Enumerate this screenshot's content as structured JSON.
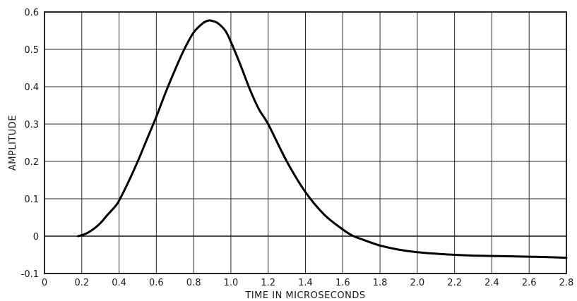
{
  "chart_data": {
    "type": "line",
    "title": "",
    "xlabel": "TIME IN MICROSECONDS",
    "ylabel": "AMPLITUDE",
    "xlim": [
      0,
      2.8
    ],
    "ylim": [
      -0.1,
      0.6
    ],
    "x_ticks": [
      "0",
      "0.2",
      "0.4",
      "0.6",
      "0.8",
      "1.0",
      "1.2",
      "1.4",
      "1.6",
      "1.8",
      "2.0",
      "2.2",
      "2.4",
      "2.6",
      "2.8"
    ],
    "y_ticks": [
      "-0.1",
      "0",
      "0.1",
      "0.2",
      "0.3",
      "0.4",
      "0.5",
      "0.6"
    ],
    "grid": true,
    "zero_line": true,
    "colors": {
      "line": "#000000",
      "grid": "#2a2a2a",
      "background": "#ffffff"
    },
    "series": [
      {
        "x": [
          0.18,
          0.22,
          0.26,
          0.3,
          0.34,
          0.38,
          0.4,
          0.45,
          0.5,
          0.55,
          0.6,
          0.65,
          0.7,
          0.75,
          0.8,
          0.85,
          0.88,
          0.9,
          0.93,
          0.97,
          1.0,
          1.05,
          1.1,
          1.15,
          1.2,
          1.3,
          1.4,
          1.5,
          1.6,
          1.65,
          1.7,
          1.8,
          1.9,
          2.0,
          2.1,
          2.2,
          2.3,
          2.4,
          2.5,
          2.6,
          2.7,
          2.8
        ],
        "values": [
          0.0,
          0.006,
          0.018,
          0.035,
          0.058,
          0.08,
          0.095,
          0.145,
          0.2,
          0.26,
          0.32,
          0.385,
          0.445,
          0.5,
          0.545,
          0.57,
          0.577,
          0.576,
          0.57,
          0.55,
          0.52,
          0.46,
          0.395,
          0.34,
          0.3,
          0.2,
          0.118,
          0.058,
          0.018,
          0.002,
          -0.008,
          -0.025,
          -0.036,
          -0.043,
          -0.047,
          -0.05,
          -0.052,
          -0.053,
          -0.054,
          -0.055,
          -0.056,
          -0.058
        ]
      }
    ]
  }
}
